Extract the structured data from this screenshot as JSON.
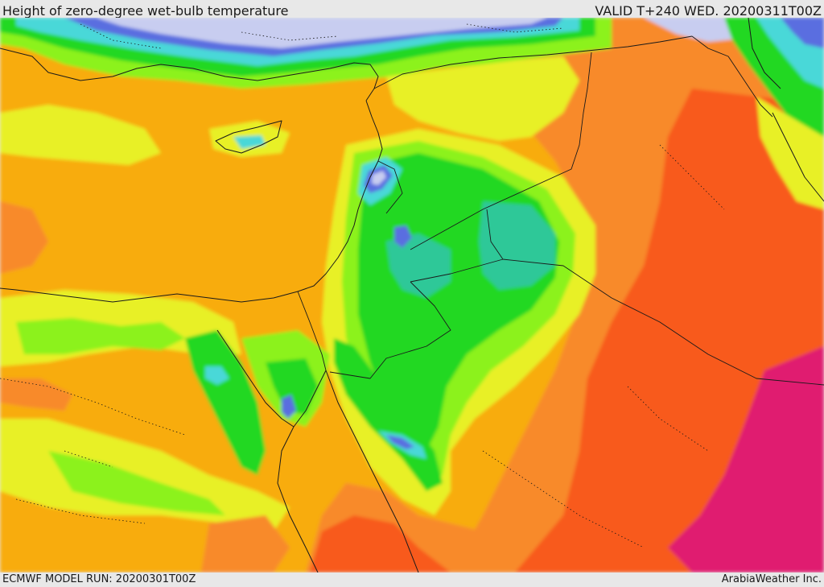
{
  "header": {
    "title": "Height of zero-degree wet-bulb temperature",
    "valid": "VALID T+240 WED. 20200311T00Z"
  },
  "footer": {
    "model_run": "ECMWF MODEL RUN: 20200301T00Z",
    "credit": "ArabiaWeather Inc."
  },
  "map": {
    "field": "height of zero-degree wet-bulb temperature",
    "region": "Eastern Mediterranean, Levant and northern Arabia",
    "color_scale": {
      "lowest": "#c8cdf0",
      "blue": "#5a6ee0",
      "cyan": "#4ad8d8",
      "teal": "#2ec898",
      "green": "#22d822",
      "light_green": "#8cf21c",
      "yellow": "#e8f028",
      "orange": "#f8ac10",
      "dark_orange": "#f88a2a",
      "red": "#f85a1e",
      "magenta": "#e01c70"
    },
    "boundary_color": "#1a1a1a"
  }
}
